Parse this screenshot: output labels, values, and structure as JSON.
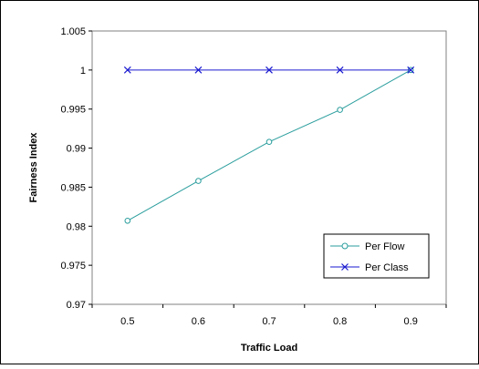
{
  "chart_data": {
    "type": "line",
    "xlabel": "Traffic Load",
    "ylabel": "Fairness Index",
    "categories": [
      "0.5",
      "0.6",
      "0.7",
      "0.8",
      "0.9"
    ],
    "ylim": [
      0.97,
      1.005
    ],
    "yticks": [
      "0.97",
      "0.975",
      "0.98",
      "0.985",
      "0.99",
      "0.995",
      "1",
      "1.005"
    ],
    "grid": false,
    "legend_position": "bottom-right",
    "series": [
      {
        "name": "Per Flow",
        "color": "#2a9d9d",
        "marker": "circle",
        "values": [
          0.9807,
          0.9858,
          0.9908,
          0.9949,
          1.0
        ]
      },
      {
        "name": "Per Class",
        "color": "#1a1ad0",
        "marker": "x",
        "values": [
          1.0,
          1.0,
          1.0,
          1.0,
          1.0
        ]
      }
    ]
  }
}
